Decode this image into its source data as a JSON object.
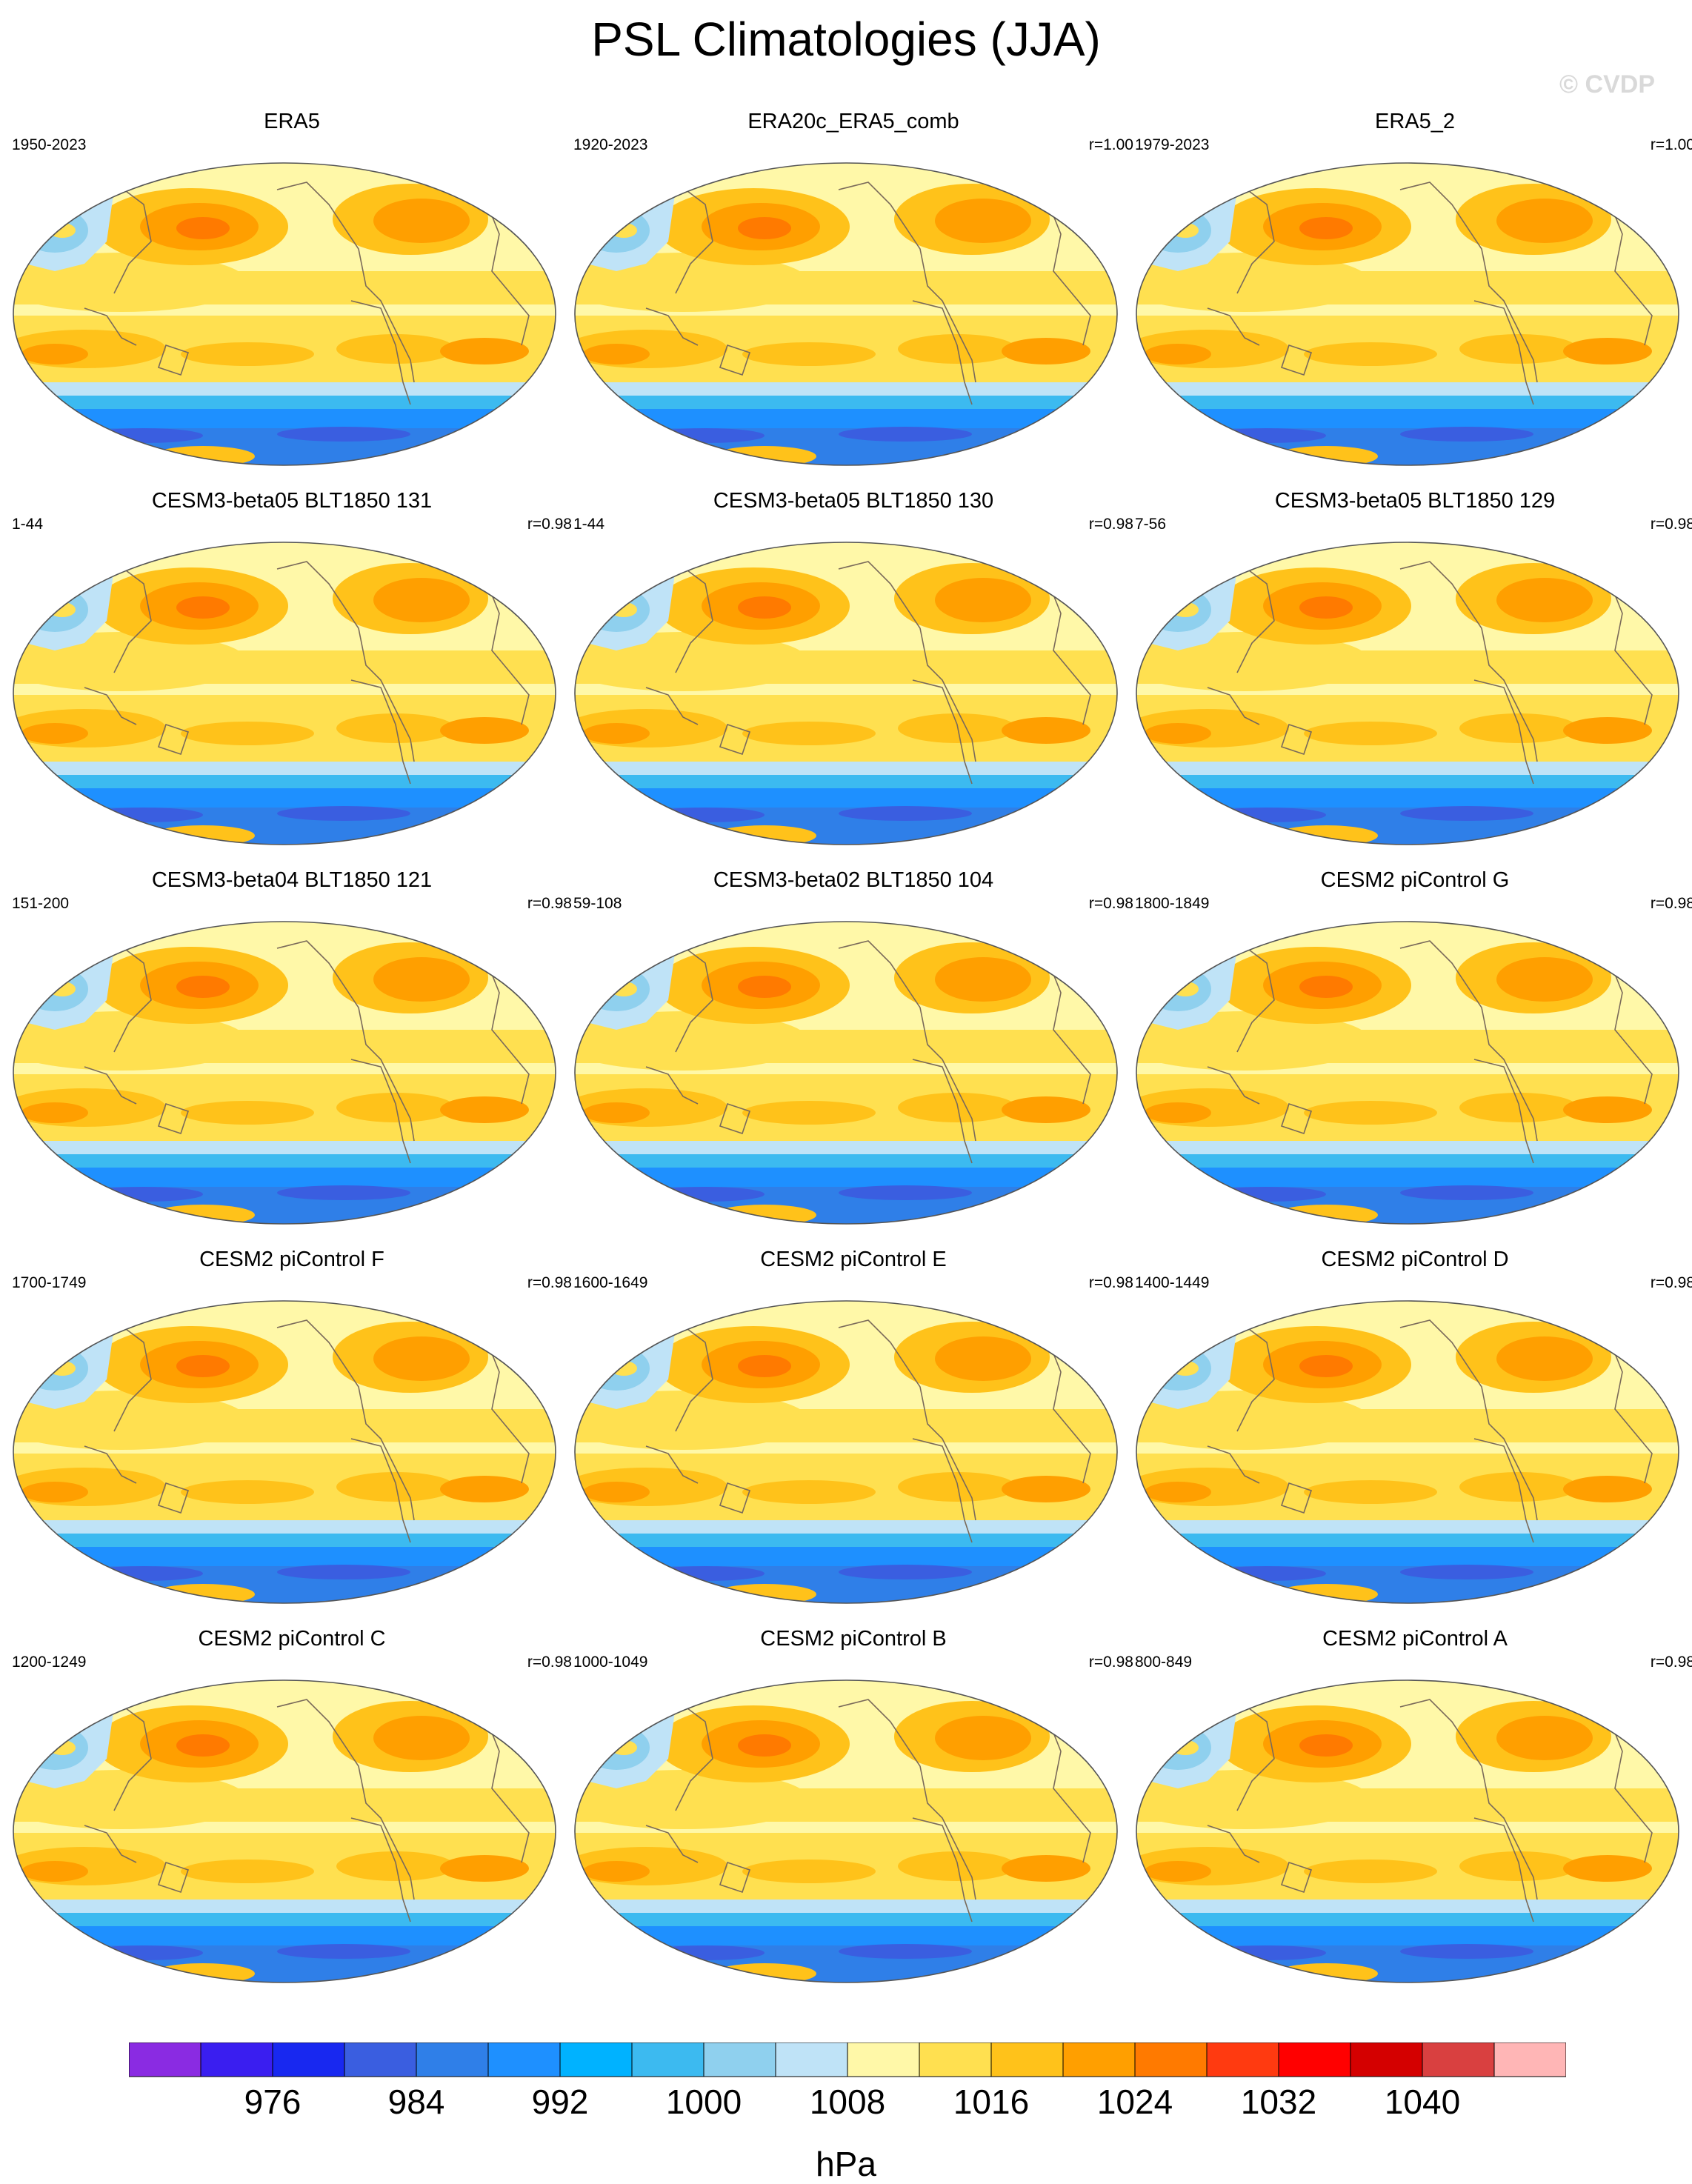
{
  "title": "PSL Climatologies (JJA)",
  "watermark": "© CVDP",
  "panels": [
    {
      "name": "ERA5",
      "years": "1950-2023",
      "corr": ""
    },
    {
      "name": "ERA20c_ERA5_comb",
      "years": "1920-2023",
      "corr": "r=1.00"
    },
    {
      "name": "ERA5_2",
      "years": "1979-2023",
      "corr": "r=1.00"
    },
    {
      "name": "CESM3-beta05 BLT1850 131",
      "years": "1-44",
      "corr": "r=0.98"
    },
    {
      "name": "CESM3-beta05 BLT1850 130",
      "years": "1-44",
      "corr": "r=0.98"
    },
    {
      "name": "CESM3-beta05 BLT1850 129",
      "years": "7-56",
      "corr": "r=0.98"
    },
    {
      "name": "CESM3-beta04 BLT1850 121",
      "years": "151-200",
      "corr": "r=0.98"
    },
    {
      "name": "CESM3-beta02 BLT1850 104",
      "years": "59-108",
      "corr": "r=0.98"
    },
    {
      "name": "CESM2 piControl G",
      "years": "1800-1849",
      "corr": "r=0.98"
    },
    {
      "name": "CESM2 piControl F",
      "years": "1700-1749",
      "corr": "r=0.98"
    },
    {
      "name": "CESM2 piControl E",
      "years": "1600-1649",
      "corr": "r=0.98"
    },
    {
      "name": "CESM2 piControl D",
      "years": "1400-1449",
      "corr": "r=0.98"
    },
    {
      "name": "CESM2 piControl C",
      "years": "1200-1249",
      "corr": "r=0.98"
    },
    {
      "name": "CESM2 piControl B",
      "years": "1000-1049",
      "corr": "r=0.98"
    },
    {
      "name": "CESM2 piControl A",
      "years": "800-849",
      "corr": "r=0.98"
    }
  ],
  "colorbar": {
    "unit": "hPa",
    "tick_labels": [
      "976",
      "984",
      "992",
      "1000",
      "1008",
      "1016",
      "1024",
      "1032",
      "1040"
    ],
    "colors": [
      "#8a2be2",
      "#3a1ef0",
      "#1828f0",
      "#3a5ee0",
      "#2f7fe8",
      "#1e90ff",
      "#00b2ff",
      "#3cbaf0",
      "#8fd0ee",
      "#bfe3f7",
      "#fff8a8",
      "#ffe050",
      "#ffc21a",
      "#ff9f00",
      "#ff7a00",
      "#ff3a10",
      "#ff0000",
      "#d40000",
      "#d94040",
      "#ffb6b6"
    ]
  },
  "map_colors": {
    "background": "#fff8a8",
    "band_mid": "#ffe050",
    "band_high": "#ffc21a",
    "high_core": "#ff9f00",
    "high_peak": "#ff7a00",
    "asia_low": "#bfe3f7",
    "asia_low_core": "#8fd0ee",
    "south_low1": "#3cbaf0",
    "south_low2": "#1e90ff",
    "south_low3": "#2f7fe8",
    "south_low4": "#3a5ee0",
    "coast": "#7a6a5a"
  }
}
